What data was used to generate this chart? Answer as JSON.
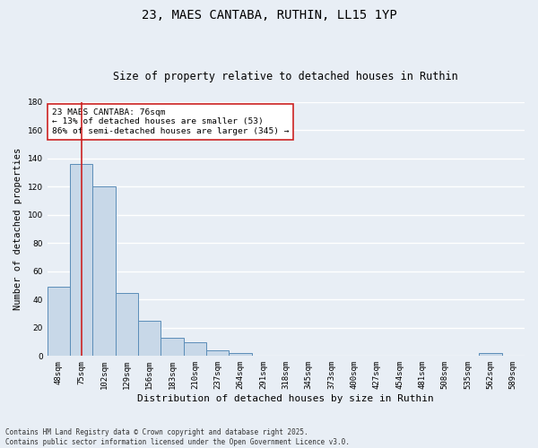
{
  "title1": "23, MAES CANTABA, RUTHIN, LL15 1YP",
  "title2": "Size of property relative to detached houses in Ruthin",
  "xlabel": "Distribution of detached houses by size in Ruthin",
  "ylabel": "Number of detached properties",
  "categories": [
    "48sqm",
    "75sqm",
    "102sqm",
    "129sqm",
    "156sqm",
    "183sqm",
    "210sqm",
    "237sqm",
    "264sqm",
    "291sqm",
    "318sqm",
    "345sqm",
    "373sqm",
    "400sqm",
    "427sqm",
    "454sqm",
    "481sqm",
    "508sqm",
    "535sqm",
    "562sqm",
    "589sqm"
  ],
  "values": [
    49,
    136,
    120,
    45,
    25,
    13,
    10,
    4,
    2,
    0,
    0,
    0,
    0,
    0,
    0,
    0,
    0,
    0,
    0,
    2,
    0
  ],
  "bar_color": "#c8d8e8",
  "bar_edge_color": "#5b8db8",
  "background_color": "#e8eef5",
  "grid_color": "#ffffff",
  "vline_x": 1,
  "vline_color": "#cc2222",
  "annotation_text": "23 MAES CANTABA: 76sqm\n← 13% of detached houses are smaller (53)\n86% of semi-detached houses are larger (345) →",
  "annotation_box_color": "#ffffff",
  "annotation_box_edge": "#cc2222",
  "ylim": [
    0,
    180
  ],
  "yticks": [
    0,
    20,
    40,
    60,
    80,
    100,
    120,
    140,
    160,
    180
  ],
  "footer": "Contains HM Land Registry data © Crown copyright and database right 2025.\nContains public sector information licensed under the Open Government Licence v3.0.",
  "title1_fontsize": 10,
  "title2_fontsize": 8.5,
  "ylabel_fontsize": 7.5,
  "xlabel_fontsize": 8,
  "tick_fontsize": 6.5,
  "annotation_fontsize": 6.8,
  "footer_fontsize": 5.5
}
